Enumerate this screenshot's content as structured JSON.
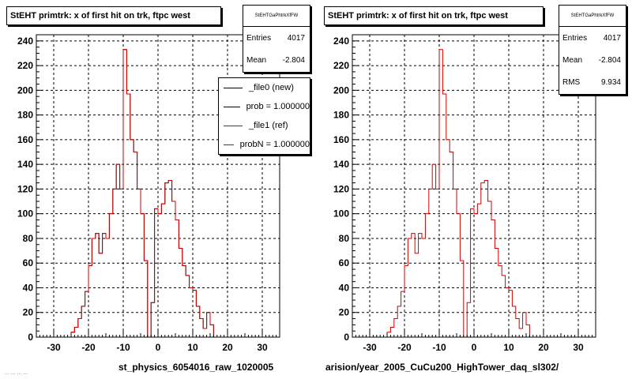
{
  "chart_data": [
    {
      "type": "histogram",
      "title": "StEHT primtrk: x of first hit on trk, ftpc west",
      "xlabel": "st_physics_6054016_raw_1020005",
      "xlim": [
        -35,
        35
      ],
      "ylim": [
        0,
        245
      ],
      "xticks": [
        -30,
        -20,
        -10,
        0,
        10,
        20,
        30
      ],
      "yticks": [
        0,
        20,
        40,
        60,
        80,
        100,
        120,
        140,
        160,
        180,
        200,
        220,
        240
      ],
      "grid": true,
      "bin_edges_start": -35,
      "bin_width": 1,
      "series": [
        {
          "name": "_file0 (new)",
          "color": "#000000",
          "values": [
            0,
            0,
            0,
            0,
            0,
            0,
            0,
            0,
            0,
            0,
            4,
            8,
            15,
            25,
            37,
            58,
            80,
            84,
            68,
            84,
            80,
            100,
            120,
            140,
            120,
            233,
            197,
            160,
            150,
            120,
            100,
            62,
            0,
            28,
            104,
            100,
            108,
            125,
            127,
            110,
            95,
            72,
            58,
            50,
            40,
            38,
            25,
            15,
            7,
            20,
            10,
            0,
            0,
            0,
            0,
            0,
            0,
            0,
            0,
            0,
            0,
            0,
            0,
            0,
            0,
            0,
            0,
            0,
            0,
            0
          ]
        },
        {
          "name": "_file1 (ref)",
          "color": "#d00000",
          "values": [
            0,
            0,
            0,
            0,
            0,
            0,
            0,
            0,
            0,
            0,
            4,
            8,
            15,
            25,
            37,
            58,
            80,
            84,
            68,
            84,
            80,
            100,
            120,
            140,
            120,
            233,
            197,
            160,
            150,
            120,
            100,
            62,
            0,
            28,
            104,
            100,
            108,
            125,
            127,
            110,
            95,
            72,
            58,
            50,
            40,
            38,
            25,
            15,
            7,
            20,
            10,
            0,
            0,
            0,
            0,
            0,
            0,
            0,
            0,
            0,
            0,
            0,
            0,
            0,
            0,
            0,
            0,
            0,
            0,
            0
          ]
        }
      ],
      "stats": {
        "header": "StEHTGaPhtrkXfFW",
        "rows": [
          {
            "label": "Entries",
            "value": "4017"
          },
          {
            "label": "Mean",
            "value": "-2.804"
          }
        ]
      },
      "legend": {
        "rows": [
          {
            "label": "_file0 (new)",
            "color": "#000000"
          },
          {
            "label": "prob = 1.000000",
            "color": "#000000"
          },
          {
            "label": "_file1 (ref)",
            "color": "#d00000"
          },
          {
            "label": "probN = 1.000000",
            "color": "#d00000"
          }
        ]
      }
    },
    {
      "type": "histogram",
      "title": "StEHT primtrk: x of first hit on trk, ftpc west",
      "xlabel": "arision/year_2005_CuCu200_HighTower_daq_sl302/",
      "xlim": [
        -35,
        35
      ],
      "ylim": [
        0,
        245
      ],
      "xticks": [
        -30,
        -20,
        -10,
        0,
        10,
        20,
        30
      ],
      "yticks": [
        0,
        20,
        40,
        60,
        80,
        100,
        120,
        140,
        160,
        180,
        200,
        220,
        240
      ],
      "grid": true,
      "bin_edges_start": -35,
      "bin_width": 1,
      "series": [
        {
          "name": "",
          "color": "#d00000",
          "values": [
            0,
            0,
            0,
            0,
            0,
            0,
            0,
            0,
            0,
            0,
            4,
            8,
            15,
            25,
            37,
            58,
            80,
            84,
            68,
            84,
            80,
            100,
            120,
            140,
            120,
            233,
            197,
            160,
            150,
            120,
            100,
            62,
            0,
            28,
            104,
            100,
            108,
            125,
            127,
            110,
            95,
            72,
            58,
            50,
            40,
            38,
            25,
            15,
            7,
            20,
            10,
            0,
            0,
            0,
            0,
            0,
            0,
            0,
            0,
            0,
            0,
            0,
            0,
            0,
            0,
            0,
            0,
            0,
            0,
            0
          ]
        }
      ],
      "stats": {
        "header": "StEHTGaPhtrkXfFW",
        "rows": [
          {
            "label": "Entries",
            "value": "4017"
          },
          {
            "label": "Mean",
            "value": "-2.804"
          },
          {
            "label": "RMS",
            "value": "9.934"
          }
        ]
      }
    }
  ],
  "footer_text": "… … … …"
}
